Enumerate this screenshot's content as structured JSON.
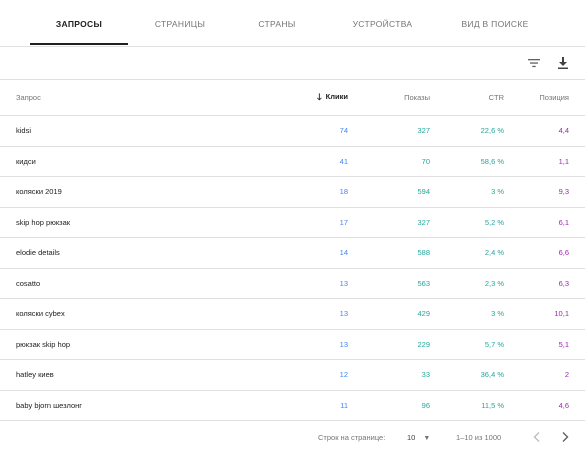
{
  "tabs": [
    {
      "label": "ЗАПРОСЫ",
      "active": true
    },
    {
      "label": "СТРАНИЦЫ",
      "active": false
    },
    {
      "label": "СТРАНЫ",
      "active": false
    },
    {
      "label": "УСТРОЙСТВА",
      "active": false
    },
    {
      "label": "ВИД В ПОИСКЕ",
      "active": false
    }
  ],
  "toolbar": {
    "filter_icon": "filter-icon",
    "download_icon": "download-icon"
  },
  "table": {
    "headers": {
      "query": "Запрос",
      "clicks": "Клики",
      "shows": "Показы",
      "ctr": "CTR",
      "position": "Позиция"
    },
    "sort_icon": "arrow-down-icon",
    "rows": [
      {
        "query": "kidsi",
        "clicks": "74",
        "shows": "327",
        "ctr": "22,6 %",
        "position": "4,4"
      },
      {
        "query": "кидси",
        "clicks": "41",
        "shows": "70",
        "ctr": "58,6 %",
        "position": "1,1"
      },
      {
        "query": "коляски 2019",
        "clicks": "18",
        "shows": "594",
        "ctr": "3 %",
        "position": "9,3"
      },
      {
        "query": "skip hop рюкзак",
        "clicks": "17",
        "shows": "327",
        "ctr": "5,2 %",
        "position": "6,1"
      },
      {
        "query": "elodie details",
        "clicks": "14",
        "shows": "588",
        "ctr": "2,4 %",
        "position": "6,6"
      },
      {
        "query": "cosatto",
        "clicks": "13",
        "shows": "563",
        "ctr": "2,3 %",
        "position": "6,3"
      },
      {
        "query": "коляски cybex",
        "clicks": "13",
        "shows": "429",
        "ctr": "3 %",
        "position": "10,1"
      },
      {
        "query": "рюкзак skip hop",
        "clicks": "13",
        "shows": "229",
        "ctr": "5,7 %",
        "position": "5,1"
      },
      {
        "query": "hatley киев",
        "clicks": "12",
        "shows": "33",
        "ctr": "36,4 %",
        "position": "2"
      },
      {
        "query": "baby bjorn шезлонг",
        "clicks": "11",
        "shows": "96",
        "ctr": "11,5 %",
        "position": "4,6"
      }
    ]
  },
  "pagination": {
    "rows_per_page_label": "Строк на странице:",
    "rows_per_page_value": "10",
    "range": "1–10 из 1000",
    "prev_icon": "chevron-left-icon",
    "next_icon": "chevron-right-icon"
  },
  "colors": {
    "clicks": "#4285f4",
    "shows": "#26a69a",
    "ctr": "#26a69a",
    "position": "#9c27b0"
  }
}
